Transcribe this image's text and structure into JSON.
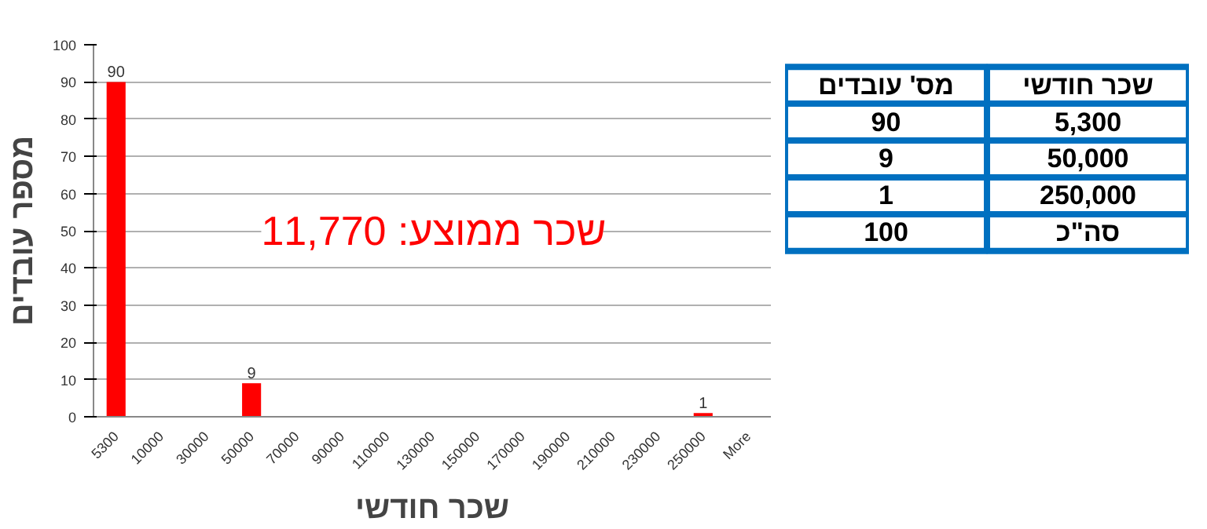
{
  "chart_data": [
    {
      "type": "bar",
      "xlabel": "שכר חודשי",
      "ylabel": "מספר עובדים",
      "categories": [
        "5300",
        "10000",
        "30000",
        "50000",
        "70000",
        "90000",
        "110000",
        "130000",
        "150000",
        "170000",
        "190000",
        "210000",
        "230000",
        "250000",
        "More"
      ],
      "values": [
        90,
        0,
        0,
        9,
        0,
        0,
        0,
        0,
        0,
        0,
        0,
        0,
        0,
        1,
        0
      ],
      "value_labels": [
        "90",
        null,
        null,
        "9",
        null,
        null,
        null,
        null,
        null,
        null,
        null,
        null,
        null,
        "1",
        null
      ],
      "color": "#ff0000",
      "ylim": [
        0,
        100
      ],
      "yticks": [
        0,
        10,
        20,
        30,
        40,
        50,
        60,
        70,
        80,
        90,
        100
      ],
      "grid": "y",
      "annotations": [
        "שכר ממוצע: 11,770"
      ]
    },
    {
      "type": "other",
      "categories": [
        "שכר חודשי",
        "מס' עובדים"
      ],
      "annotations": [
        "5,300",
        "90",
        "50,000",
        "9",
        "250,000",
        "1",
        "סה\"כ",
        "100"
      ]
    }
  ]
}
